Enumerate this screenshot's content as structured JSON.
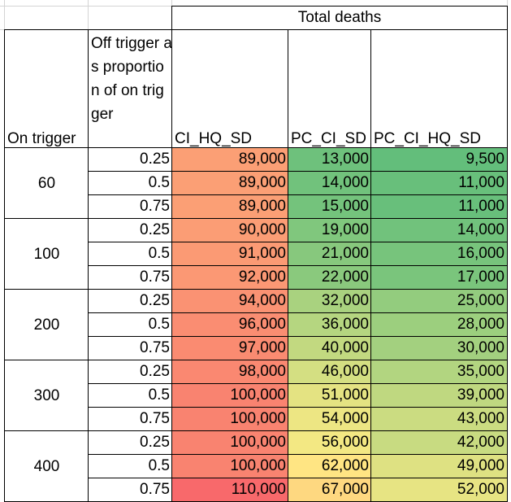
{
  "header": {
    "group_title": "Total deaths",
    "on_trigger": "On trigger",
    "off_trigger": "Off trigger as proportion of on trigger",
    "columns": [
      "CI_HQ_SD",
      "PC_CI_SD",
      "PC_CI_HQ_SD"
    ]
  },
  "groups": [
    {
      "on": "60",
      "rows": [
        {
          "off": "0.25",
          "values": [
            "89,000",
            "13,000",
            "9,500"
          ]
        },
        {
          "off": "0.5",
          "values": [
            "89,000",
            "14,000",
            "11,000"
          ]
        },
        {
          "off": "0.75",
          "values": [
            "89,000",
            "15,000",
            "11,000"
          ]
        }
      ]
    },
    {
      "on": "100",
      "rows": [
        {
          "off": "0.25",
          "values": [
            "90,000",
            "19,000",
            "14,000"
          ]
        },
        {
          "off": "0.5",
          "values": [
            "91,000",
            "21,000",
            "16,000"
          ]
        },
        {
          "off": "0.75",
          "values": [
            "92,000",
            "22,000",
            "17,000"
          ]
        }
      ]
    },
    {
      "on": "200",
      "rows": [
        {
          "off": "0.25",
          "values": [
            "94,000",
            "32,000",
            "25,000"
          ]
        },
        {
          "off": "0.5",
          "values": [
            "96,000",
            "36,000",
            "28,000"
          ]
        },
        {
          "off": "0.75",
          "values": [
            "97,000",
            "40,000",
            "30,000"
          ]
        }
      ]
    },
    {
      "on": "300",
      "rows": [
        {
          "off": "0.25",
          "values": [
            "98,000",
            "46,000",
            "35,000"
          ]
        },
        {
          "off": "0.5",
          "values": [
            "100,000",
            "51,000",
            "39,000"
          ]
        },
        {
          "off": "0.75",
          "values": [
            "100,000",
            "54,000",
            "43,000"
          ]
        }
      ]
    },
    {
      "on": "400",
      "rows": [
        {
          "off": "0.25",
          "values": [
            "100,000",
            "56,000",
            "42,000"
          ]
        },
        {
          "off": "0.5",
          "values": [
            "100,000",
            "62,000",
            "49,000"
          ]
        },
        {
          "off": "0.75",
          "values": [
            "110,000",
            "67,000",
            "52,000"
          ]
        }
      ]
    }
  ],
  "colors": {
    "min": "#63be7b",
    "mid": "#ffeb84",
    "max": "#f8696b",
    "grid": "#d4d4d4",
    "border": "#000000"
  }
}
